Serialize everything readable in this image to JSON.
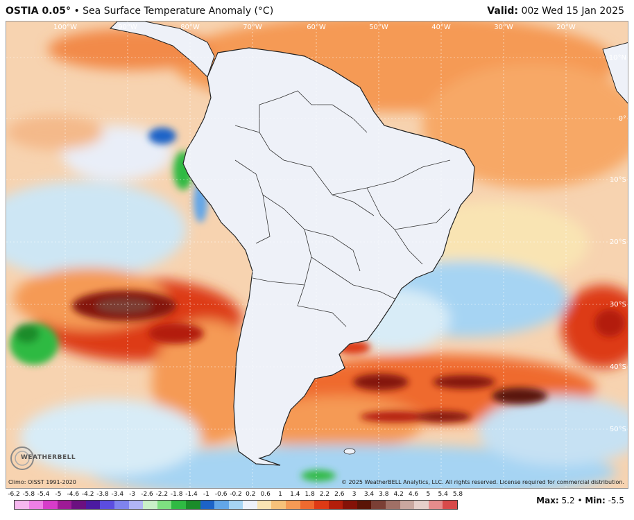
{
  "header": {
    "model": "OSTIA 0.05",
    "degree": "°",
    "subtitle": " • Sea Surface Temperature Anomaly (°C)",
    "valid_label": "Valid:",
    "valid_value": " 00z Wed 15 Jan 2025"
  },
  "map": {
    "lon_labels": [
      "100°W",
      "90°W",
      "80°W",
      "70°W",
      "60°W",
      "50°W",
      "40°W",
      "30°W",
      "20°W"
    ],
    "lat_labels": [
      "10°N",
      "0°",
      "10°S",
      "20°S",
      "30°S",
      "40°S",
      "50°S"
    ],
    "icons": [
      "weatherbell-logo"
    ]
  },
  "colorbar": {
    "labels": [
      "-6.2",
      "-5.8",
      "-5.4",
      "-5",
      "-4.6",
      "-4.2",
      "-3.8",
      "-3.4",
      "-3",
      "-2.6",
      "-2.2",
      "-1.8",
      "-1.4",
      "-1",
      "-0.6",
      "-0.2",
      "0.2",
      "0.6",
      "1",
      "1.4",
      "1.8",
      "2.2",
      "2.6",
      "3",
      "3.4",
      "3.8",
      "4.2",
      "4.6",
      "5",
      "5.4",
      "5.8"
    ],
    "colors": [
      "#f7b8f0",
      "#ee7fe6",
      "#d63cc9",
      "#9e1b96",
      "#6b1080",
      "#4b1aa1",
      "#5b4de0",
      "#7f83ee",
      "#b0b5f5",
      "#c9f0c8",
      "#7ee081",
      "#2fba43",
      "#1a8c2a",
      "#1c63c8",
      "#62a6e8",
      "#a6d4f3",
      "#eef2fa",
      "#f9e4b3",
      "#f7c27a",
      "#f59a55",
      "#ef6a2f",
      "#dd3a15",
      "#b31e0b",
      "#841208",
      "#5a1407",
      "#7b3f35",
      "#a07066",
      "#c9a79f",
      "#e6cfca",
      "#e58c8c",
      "#d84a4a"
    ]
  },
  "footer": {
    "max_label": "Max:",
    "max_value": " 5.2",
    "sep": " • ",
    "min_label": "Min:",
    "min_value": " -5.5",
    "climo": "Climo: OISST 1991-2020",
    "copyright": "© 2025 WeatherBELL Analytics, LLC. All rights reserved. License required for commercial distribution.",
    "logo_text": "WEATHERBELL"
  }
}
